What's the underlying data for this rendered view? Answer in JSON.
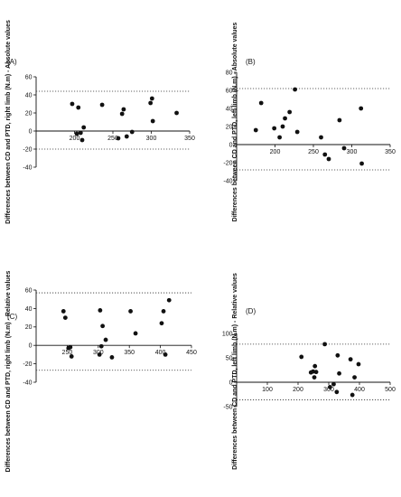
{
  "chart_data": [
    {
      "type": "scatter",
      "panel_label": "(A)",
      "ylabel": "Differences between CD and PTD, right limb (N.m) - Absolute values",
      "xlabel": "",
      "xlim": [
        150,
        350
      ],
      "xticks": [
        200,
        250,
        300,
        350
      ],
      "ylim": [
        -40,
        60
      ],
      "yticks": [
        -40,
        -20,
        0,
        20,
        40,
        60
      ],
      "mean_line": 0,
      "limits_of_agreement": [
        44,
        -20
      ],
      "points": [
        {
          "x": 197,
          "y": 30
        },
        {
          "x": 203,
          "y": -3
        },
        {
          "x": 205,
          "y": 26
        },
        {
          "x": 208,
          "y": -2
        },
        {
          "x": 210,
          "y": -10
        },
        {
          "x": 212,
          "y": 4
        },
        {
          "x": 236,
          "y": 29
        },
        {
          "x": 257,
          "y": -8
        },
        {
          "x": 262,
          "y": 19
        },
        {
          "x": 264,
          "y": 24
        },
        {
          "x": 268,
          "y": -6
        },
        {
          "x": 275,
          "y": -1
        },
        {
          "x": 299,
          "y": 31
        },
        {
          "x": 301,
          "y": 36
        },
        {
          "x": 302,
          "y": 11
        },
        {
          "x": 333,
          "y": 20
        }
      ]
    },
    {
      "type": "scatter",
      "panel_label": "(B)",
      "ylabel": "Differences between CD and PTD, left limb (N.m) - Absolute values",
      "xlabel": "",
      "xlim": [
        150,
        350
      ],
      "xticks": [
        200,
        250,
        300,
        350
      ],
      "ylim": [
        -40,
        80
      ],
      "yticks": [
        -40,
        -20,
        0,
        20,
        40,
        60,
        80
      ],
      "mean_line": 0,
      "limits_of_agreement": [
        62,
        -28
      ],
      "points": [
        {
          "x": 175,
          "y": 16
        },
        {
          "x": 182,
          "y": 46
        },
        {
          "x": 199,
          "y": 18
        },
        {
          "x": 206,
          "y": 8
        },
        {
          "x": 210,
          "y": 20
        },
        {
          "x": 213,
          "y": 29
        },
        {
          "x": 219,
          "y": 36
        },
        {
          "x": 226,
          "y": 61
        },
        {
          "x": 229,
          "y": 14
        },
        {
          "x": 260,
          "y": 8
        },
        {
          "x": 265,
          "y": -11
        },
        {
          "x": 270,
          "y": -16
        },
        {
          "x": 284,
          "y": 27
        },
        {
          "x": 290,
          "y": -4
        },
        {
          "x": 312,
          "y": 40
        },
        {
          "x": 313,
          "y": -21
        }
      ]
    },
    {
      "type": "scatter",
      "panel_label": "(C)",
      "ylabel": "Differences between CD and PTD, right limb (N.m) - Relative values",
      "xlabel": "",
      "xlim": [
        200,
        450
      ],
      "xticks": [
        250,
        300,
        350,
        400,
        450
      ],
      "ylim": [
        -40,
        60
      ],
      "yticks": [
        -40,
        -20,
        0,
        20,
        40,
        60
      ],
      "mean_line": 0,
      "limits_of_agreement": [
        57,
        -27
      ],
      "points": [
        {
          "x": 244,
          "y": 37
        },
        {
          "x": 247,
          "y": 30
        },
        {
          "x": 252,
          "y": -3
        },
        {
          "x": 255,
          "y": -2
        },
        {
          "x": 257,
          "y": -12
        },
        {
          "x": 302,
          "y": -10
        },
        {
          "x": 303,
          "y": 38
        },
        {
          "x": 305,
          "y": -1
        },
        {
          "x": 307,
          "y": 21
        },
        {
          "x": 312,
          "y": 6
        },
        {
          "x": 322,
          "y": -13
        },
        {
          "x": 352,
          "y": 37
        },
        {
          "x": 360,
          "y": 13
        },
        {
          "x": 402,
          "y": 24
        },
        {
          "x": 405,
          "y": 37
        },
        {
          "x": 408,
          "y": -10
        },
        {
          "x": 414,
          "y": 49
        }
      ]
    },
    {
      "type": "scatter",
      "panel_label": "(D)",
      "ylabel": "Differences between CD and PTD, left limb (N.m) - Relative values",
      "xlabel": "",
      "xlim": [
        0,
        500
      ],
      "xticks": [
        100,
        200,
        300,
        400,
        500
      ],
      "ylim": [
        -50,
        100
      ],
      "yticks": [
        -50,
        0,
        50,
        100
      ],
      "mean_line": 0,
      "limits_of_agreement": [
        78,
        -36
      ],
      "points": [
        {
          "x": 211,
          "y": 52
        },
        {
          "x": 242,
          "y": 20
        },
        {
          "x": 249,
          "y": 22
        },
        {
          "x": 253,
          "y": 10
        },
        {
          "x": 255,
          "y": 33
        },
        {
          "x": 259,
          "y": 21
        },
        {
          "x": 287,
          "y": 78
        },
        {
          "x": 304,
          "y": -10
        },
        {
          "x": 316,
          "y": -4
        },
        {
          "x": 326,
          "y": -20
        },
        {
          "x": 329,
          "y": 55
        },
        {
          "x": 334,
          "y": 18
        },
        {
          "x": 371,
          "y": 47
        },
        {
          "x": 377,
          "y": -26
        },
        {
          "x": 384,
          "y": 10
        },
        {
          "x": 397,
          "y": 37
        }
      ]
    }
  ]
}
